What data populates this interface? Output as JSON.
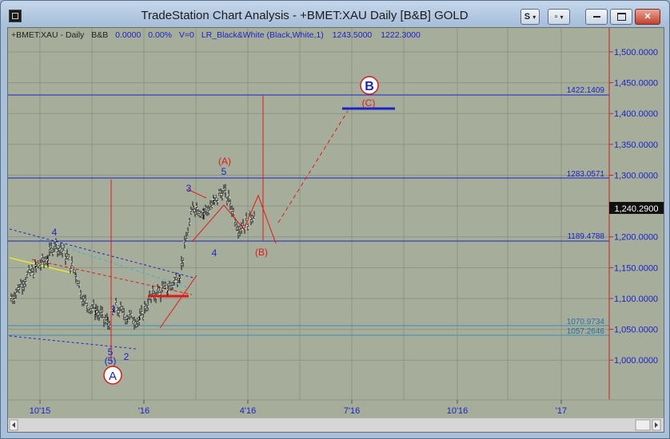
{
  "window": {
    "title": "TradeStation Chart Analysis - +BMET:XAU Daily [B&B] GOLD"
  },
  "titlebar": {
    "s_label": "S",
    "doc_label": "▫"
  },
  "status": {
    "symbol": "+BMET:XAU - Daily",
    "bb": "B&B",
    "change": "0.0000",
    "pct": "0.00%",
    "volume": "V=0",
    "indicator": "LR_Black&White (Black,White,1)",
    "high": "1243.5000",
    "low": "1222.3000"
  },
  "price_axis": {
    "ticks": [
      "1,500.0000",
      "1,450.0000",
      "1,400.0000",
      "1,350.0000",
      "1,300.0000",
      "1,250.0000",
      "1,200.0000",
      "1,150.0000",
      "1,100.0000",
      "1,050.0000",
      "1,000.0000"
    ],
    "last_price": "1,240.2900"
  },
  "time_axis": {
    "ticks": [
      "10'15",
      "'16",
      "4'16",
      "7'16",
      "10'16",
      "'17"
    ]
  },
  "levels": {
    "l1": "1422.1409",
    "l2": "1283.0571",
    "l3": "1189.4788",
    "l4": "1070.9734",
    "l5": "1057.2646"
  },
  "waves": {
    "A": "A",
    "B": "B",
    "C_paren": "(C)",
    "A_paren": "(A)",
    "B_paren": "(B)",
    "five_paren": "(5)",
    "w1": "1",
    "w2": "2",
    "w3": "3",
    "w4a": "4",
    "w4b": "4",
    "w5a": "5",
    "w5b": "5"
  },
  "colors": {
    "chart_bg": "#a6ae9b",
    "grid": "#8e9486",
    "level_blue": "#1a23c9",
    "wave_red": "#e01818",
    "wave_blue": "#1a23c9",
    "price_axis_line": "#cc2020"
  }
}
